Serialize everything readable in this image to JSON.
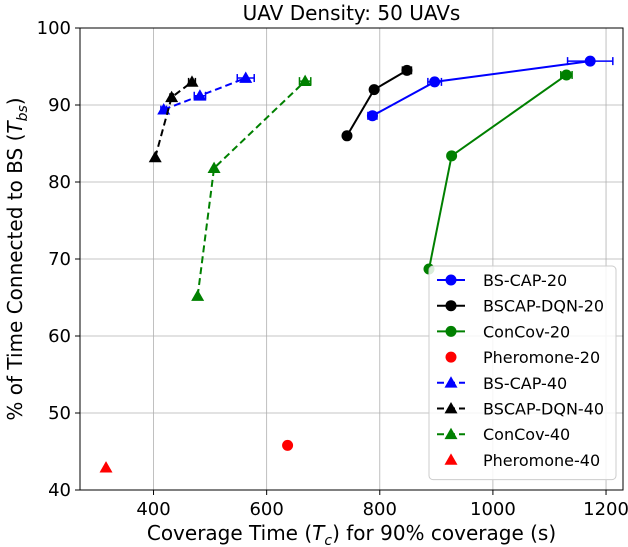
{
  "chart_data": {
    "type": "line",
    "title": "UAV Density: 50 UAVs",
    "xlabel": {
      "prefix": "Coverage Time (",
      "var": "T",
      "sub": "c",
      "suffix": ") for 90% coverage (s)"
    },
    "ylabel": {
      "prefix": "% of Time Connected to BS (",
      "var": "T",
      "sub": "bs",
      "suffix": ")"
    },
    "xlim": [
      270,
      1230
    ],
    "ylim": [
      40,
      100
    ],
    "xticks": [
      400,
      600,
      800,
      1000,
      1200
    ],
    "yticks": [
      40,
      50,
      60,
      70,
      80,
      90,
      100
    ],
    "grid": true,
    "legend_position": "lower-right",
    "series": [
      {
        "name": "BS-CAP-20",
        "color": "#0000ff",
        "marker": "circle",
        "linestyle": "solid",
        "points": [
          {
            "x": 787,
            "y": 88.6,
            "xerr": 8
          },
          {
            "x": 897,
            "y": 93.0,
            "xerr": 12
          },
          {
            "x": 1172,
            "y": 95.7,
            "xerr": 40
          }
        ]
      },
      {
        "name": "BSCAP-DQN-20",
        "color": "#000000",
        "marker": "circle",
        "linestyle": "solid",
        "points": [
          {
            "x": 742,
            "y": 86.0,
            "xerr": 0
          },
          {
            "x": 790,
            "y": 92.0,
            "xerr": 0
          },
          {
            "x": 848,
            "y": 94.5,
            "xerr": 8
          }
        ]
      },
      {
        "name": "ConCov-20",
        "color": "#008000",
        "marker": "circle",
        "linestyle": "solid",
        "points": [
          {
            "x": 887,
            "y": 68.7,
            "xerr": 0
          },
          {
            "x": 927,
            "y": 83.4,
            "xerr": 0
          },
          {
            "x": 1130,
            "y": 93.9,
            "xerr": 10
          }
        ]
      },
      {
        "name": "Pheromone-20",
        "color": "#ff0000",
        "marker": "circle",
        "linestyle": "none",
        "points": [
          {
            "x": 637,
            "y": 45.8,
            "xerr": 0
          }
        ]
      },
      {
        "name": "BS-CAP-40",
        "color": "#0000ff",
        "marker": "triangle",
        "linestyle": "dashed",
        "points": [
          {
            "x": 418,
            "y": 89.4,
            "xerr": 5
          },
          {
            "x": 482,
            "y": 91.2,
            "xerr": 10
          },
          {
            "x": 563,
            "y": 93.5,
            "xerr": 15
          }
        ]
      },
      {
        "name": "BSCAP-DQN-40",
        "color": "#000000",
        "marker": "triangle",
        "linestyle": "dashed",
        "points": [
          {
            "x": 403,
            "y": 83.2,
            "xerr": 0
          },
          {
            "x": 432,
            "y": 91.0,
            "xerr": 3
          },
          {
            "x": 468,
            "y": 93.0,
            "xerr": 6
          }
        ]
      },
      {
        "name": "ConCov-40",
        "color": "#008000",
        "marker": "triangle",
        "linestyle": "dashed",
        "points": [
          {
            "x": 478,
            "y": 65.2,
            "xerr": 0
          },
          {
            "x": 507,
            "y": 81.8,
            "xerr": 0
          },
          {
            "x": 668,
            "y": 93.1,
            "xerr": 10
          }
        ]
      },
      {
        "name": "Pheromone-40",
        "color": "#ff0000",
        "marker": "triangle",
        "linestyle": "none",
        "points": [
          {
            "x": 316,
            "y": 42.9,
            "xerr": 0
          }
        ]
      }
    ]
  }
}
